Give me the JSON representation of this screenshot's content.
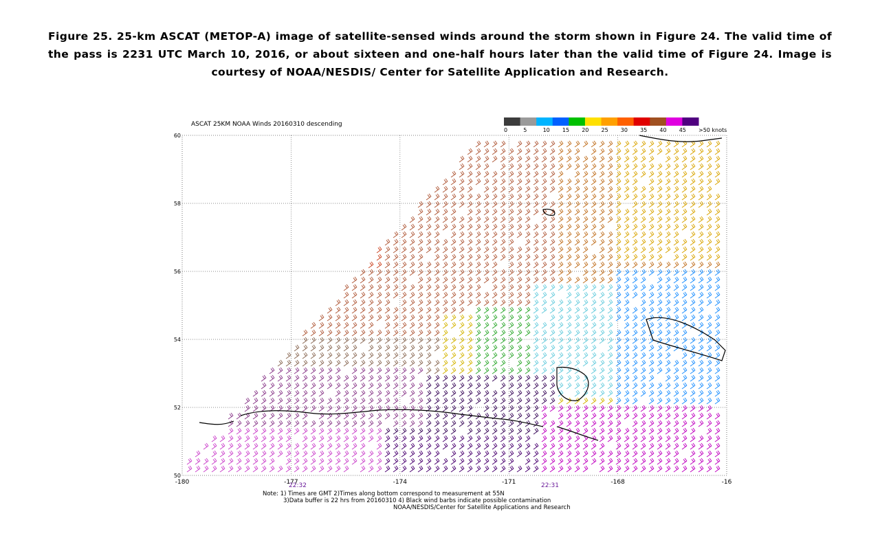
{
  "caption": "Figure 25.  25-km ASCAT (METOP-A) image of satellite-sensed winds around the storm shown in Figure 24.  The valid time of the pass is 2231 UTC March 10, 2016, or about sixteen and one-half hours later than the valid time of Figure 24.  Image is courtesy of NOAA/NESDIS/ Center for Satellite Application and Research.",
  "map": {
    "title": "ASCAT 25KM NOAA Winds 20160310 descending",
    "legend": {
      "labels": [
        "0",
        "5",
        "10",
        "15",
        "20",
        "25",
        "30",
        "35",
        "40",
        "45",
        ">50 knots"
      ],
      "colors": [
        "#3c3c3c",
        "#9a9a9a",
        "#00b4ff",
        "#0060ff",
        "#00c000",
        "#ffe000",
        "#ffa000",
        "#ff6000",
        "#e00000",
        "#a05020",
        "#e000e0",
        "#500080"
      ]
    },
    "lat_labels": [
      "60",
      "58",
      "56",
      "54",
      "52",
      "50"
    ],
    "lon_labels": [
      "-180",
      "-177",
      "-174",
      "-171",
      "-168",
      "-16"
    ],
    "time_labels": [
      "22:32",
      "22:31"
    ]
  },
  "notes": {
    "line1": "Note: 1) Times are GMT 2)Times along bottom correspond to measurement at 55N",
    "line2": "3)Data buffer is 22 hrs from 20160310 4) Black wind barbs indicate possible contamination",
    "line3": "NOAA/NESDIS/Center for Satellite Applications and Research"
  }
}
